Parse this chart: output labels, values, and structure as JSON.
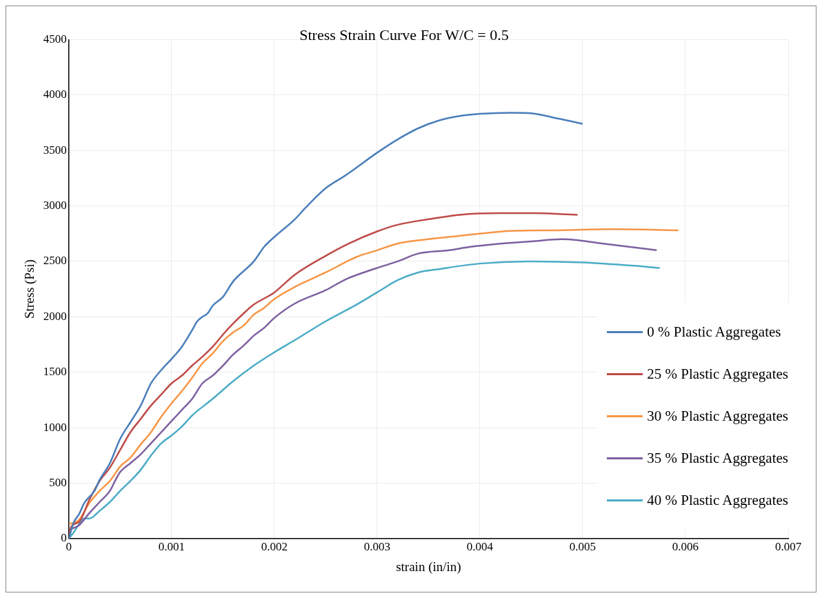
{
  "chart_data": {
    "type": "line",
    "title": "Stress Strain Curve For W/C = 0.5",
    "xlabel": "strain (in/in)",
    "ylabel": "Stress (Psi)",
    "xlim": [
      0,
      0.007
    ],
    "xticks": [
      0,
      0.001,
      0.002,
      0.003,
      0.004,
      0.005,
      0.006,
      0.007
    ],
    "ylim": [
      0,
      4500
    ],
    "yticks": [
      0,
      500,
      1000,
      1500,
      2000,
      2500,
      3000,
      3500,
      4000,
      4500
    ],
    "grid": true,
    "legend": "right",
    "marker": "none",
    "line_style": "solid",
    "series": [
      {
        "name": "0 % Plastic Aggregates",
        "color": "#4a7ebb",
        "x": [
          0,
          5e-05,
          0.0001,
          0.00015,
          0.00025,
          0.0003,
          0.0004,
          0.0005,
          0.0006,
          0.0007,
          0.0008,
          0.0009,
          0.001,
          0.0011,
          0.0012,
          0.00125,
          0.0013,
          0.00135,
          0.0014,
          0.0015,
          0.0016,
          0.0018,
          0.0019,
          0.002,
          0.0022,
          0.0023,
          0.0025,
          0.0027,
          0.003,
          0.0032,
          0.0034,
          0.0036,
          0.0038,
          0.004,
          0.0043,
          0.0045,
          0.0047,
          0.005
        ],
        "values": [
          0,
          150,
          220,
          320,
          430,
          530,
          680,
          900,
          1050,
          1200,
          1400,
          1520,
          1620,
          1730,
          1880,
          1960,
          2000,
          2030,
          2100,
          2180,
          2320,
          2500,
          2630,
          2720,
          2880,
          2980,
          3160,
          3280,
          3480,
          3600,
          3700,
          3770,
          3810,
          3830,
          3840,
          3835,
          3800,
          3740
        ]
      },
      {
        "name": "25 % Plastic Aggregates",
        "color": "#be4b48",
        "x": [
          0,
          2e-05,
          0.0001,
          0.0002,
          0.0003,
          0.0004,
          0.0005,
          0.0006,
          0.0007,
          0.0008,
          0.0009,
          0.001,
          0.0011,
          0.0012,
          0.0013,
          0.0014,
          0.0015,
          0.0016,
          0.0017,
          0.0018,
          0.002,
          0.0022,
          0.0025,
          0.0027,
          0.003,
          0.0032,
          0.0035,
          0.0038,
          0.0042,
          0.0045,
          0.00495
        ],
        "values": [
          0,
          100,
          150,
          350,
          520,
          640,
          800,
          960,
          1080,
          1200,
          1300,
          1400,
          1470,
          1560,
          1640,
          1730,
          1840,
          1940,
          2030,
          2110,
          2220,
          2380,
          2550,
          2650,
          2770,
          2830,
          2880,
          2920,
          2935,
          2935,
          2920
        ]
      },
      {
        "name": "30 % Plastic Aggregates",
        "color": "#f79646",
        "x": [
          0,
          0.0001,
          0.0002,
          0.0003,
          0.0004,
          0.0005,
          0.0006,
          0.0007,
          0.0008,
          0.0009,
          0.001,
          0.0011,
          0.0012,
          0.0013,
          0.0014,
          0.0015,
          0.0016,
          0.0017,
          0.0018,
          0.0019,
          0.002,
          0.0022,
          0.0025,
          0.0028,
          0.003,
          0.0032,
          0.0035,
          0.0038,
          0.004,
          0.0043,
          0.0047,
          0.0053,
          0.00593
        ],
        "values": [
          130,
          170,
          320,
          430,
          520,
          650,
          730,
          850,
          960,
          1100,
          1220,
          1330,
          1450,
          1580,
          1670,
          1780,
          1860,
          1920,
          2020,
          2080,
          2160,
          2270,
          2400,
          2540,
          2600,
          2660,
          2700,
          2730,
          2750,
          2775,
          2780,
          2790,
          2780
        ]
      },
      {
        "name": "35 % Plastic Aggregates",
        "color": "#7d60a0",
        "x": [
          0,
          0.0001,
          0.0002,
          0.0003,
          0.0004,
          0.00045,
          0.0005,
          0.0006,
          0.0007,
          0.0008,
          0.0009,
          0.001,
          0.0011,
          0.0012,
          0.0013,
          0.0014,
          0.0015,
          0.0016,
          0.0017,
          0.0018,
          0.0019,
          0.002,
          0.0022,
          0.0025,
          0.0027,
          0.003,
          0.0032,
          0.0034,
          0.0037,
          0.0039,
          0.0042,
          0.0045,
          0.0048,
          0.0052,
          0.00572
        ],
        "values": [
          80,
          120,
          230,
          330,
          430,
          520,
          600,
          680,
          760,
          860,
          960,
          1060,
          1160,
          1260,
          1400,
          1470,
          1560,
          1660,
          1740,
          1830,
          1900,
          1990,
          2120,
          2240,
          2340,
          2440,
          2500,
          2570,
          2600,
          2630,
          2660,
          2680,
          2700,
          2660,
          2600
        ]
      },
      {
        "name": "40 % Plastic Aggregates",
        "color": "#4bacc6",
        "x": [
          0,
          5e-05,
          0.0001,
          0.00015,
          0.0002,
          0.0003,
          0.0004,
          0.0005,
          0.0006,
          0.0007,
          0.0008,
          0.0009,
          0.001,
          0.0011,
          0.0012,
          0.0014,
          0.0016,
          0.0018,
          0.002,
          0.0022,
          0.0025,
          0.0028,
          0.003,
          0.0032,
          0.0034,
          0.0036,
          0.004,
          0.0045,
          0.005,
          0.0055,
          0.00575
        ],
        "values": [
          0,
          60,
          130,
          180,
          180,
          250,
          330,
          430,
          520,
          620,
          750,
          860,
          930,
          1010,
          1110,
          1260,
          1420,
          1560,
          1680,
          1790,
          1960,
          2110,
          2220,
          2330,
          2400,
          2430,
          2480,
          2500,
          2490,
          2460,
          2440
        ]
      }
    ]
  }
}
